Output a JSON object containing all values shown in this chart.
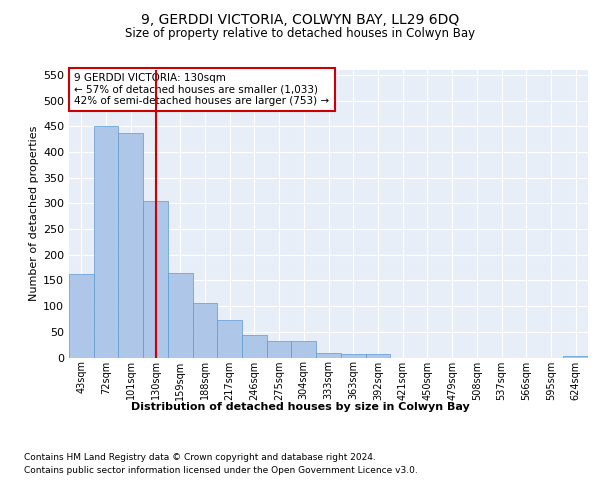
{
  "title": "9, GERDDI VICTORIA, COLWYN BAY, LL29 6DQ",
  "subtitle": "Size of property relative to detached houses in Colwyn Bay",
  "xlabel": "Distribution of detached houses by size in Colwyn Bay",
  "ylabel": "Number of detached properties",
  "categories": [
    "43sqm",
    "72sqm",
    "101sqm",
    "130sqm",
    "159sqm",
    "188sqm",
    "217sqm",
    "246sqm",
    "275sqm",
    "304sqm",
    "333sqm",
    "363sqm",
    "392sqm",
    "421sqm",
    "450sqm",
    "479sqm",
    "508sqm",
    "537sqm",
    "566sqm",
    "595sqm",
    "624sqm"
  ],
  "values": [
    163,
    450,
    437,
    305,
    165,
    107,
    73,
    43,
    33,
    33,
    9,
    7,
    7,
    0,
    0,
    0,
    0,
    0,
    0,
    0,
    2
  ],
  "bar_color": "#aec6e8",
  "bar_edge_color": "#5b9bd5",
  "highlight_index": 3,
  "highlight_line_color": "#cc0000",
  "annotation_text": "9 GERDDI VICTORIA: 130sqm\n← 57% of detached houses are smaller (1,033)\n42% of semi-detached houses are larger (753) →",
  "annotation_box_color": "#cc0000",
  "ylim": [
    0,
    560
  ],
  "yticks": [
    0,
    50,
    100,
    150,
    200,
    250,
    300,
    350,
    400,
    450,
    500,
    550
  ],
  "background_color": "#e8eef8",
  "grid_color": "#ffffff",
  "footer_line1": "Contains HM Land Registry data © Crown copyright and database right 2024.",
  "footer_line2": "Contains public sector information licensed under the Open Government Licence v3.0."
}
